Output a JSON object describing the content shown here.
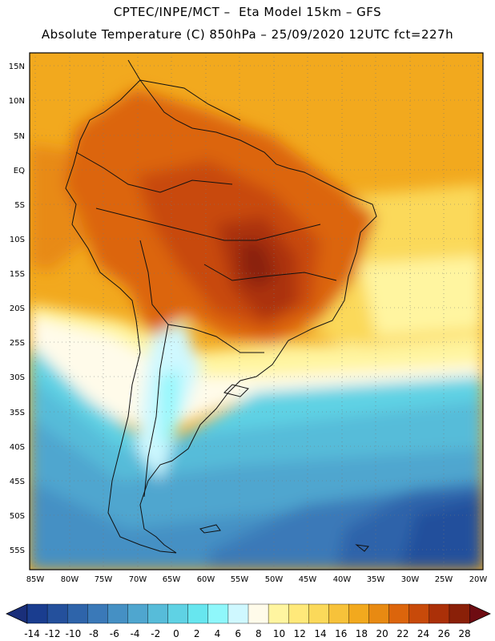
{
  "title_line1": "CPTEC/INPE/MCT –  Eta Model 15km – GFS",
  "title_line2": "Absolute Temperature (C) 850hPa – 25/09/2020 12UTC fct=227h",
  "lat_labels": [
    "15N",
    "10N",
    "5N",
    "EQ",
    "5S",
    "10S",
    "15S",
    "20S",
    "25S",
    "30S",
    "35S",
    "40S",
    "45S",
    "50S",
    "55S"
  ],
  "lon_labels": [
    "85W",
    "80W",
    "75W",
    "70W",
    "65W",
    "60W",
    "55W",
    "50W",
    "45W",
    "40W",
    "35W",
    "30W",
    "25W",
    "20W"
  ],
  "colorbar": {
    "ticks": [
      "-14",
      "-12",
      "-10",
      "-8",
      "-6",
      "-4",
      "-2",
      "0",
      "2",
      "4",
      "6",
      "8",
      "10",
      "12",
      "14",
      "16",
      "18",
      "20",
      "22",
      "24",
      "26",
      "28"
    ],
    "colors": [
      "#1a3d8f",
      "#24509c",
      "#2e64aa",
      "#3a79b8",
      "#4590c4",
      "#4fa6cf",
      "#57bcd9",
      "#5fd2e4",
      "#67e6ef",
      "#8ff7fb",
      "#cff8ff",
      "#fffbea",
      "#fff5a0",
      "#ffe97a",
      "#fbd95a",
      "#f7c23a",
      "#f2a91e",
      "#e88a12",
      "#dc650c",
      "#c84a0a",
      "#ab3008",
      "#8a2008"
    ],
    "left_arrow_color": "#1a2f7a",
    "right_arrow_color": "#6e0c12"
  },
  "chart_data": {
    "type": "heatmap",
    "title": "Absolute Temperature (C) 850hPa",
    "model": "CPTEC/INPE/MCT Eta Model 15km GFS",
    "run": "25/09/2020 12UTC",
    "forecast_hour": "227h",
    "lon_range": [
      -86,
      -19
    ],
    "lat_range": [
      -58,
      16
    ],
    "levels": [
      -14,
      -12,
      -10,
      -8,
      -6,
      -4,
      -2,
      0,
      2,
      4,
      6,
      8,
      10,
      12,
      14,
      16,
      18,
      20,
      22,
      24,
      26,
      28
    ]
  }
}
